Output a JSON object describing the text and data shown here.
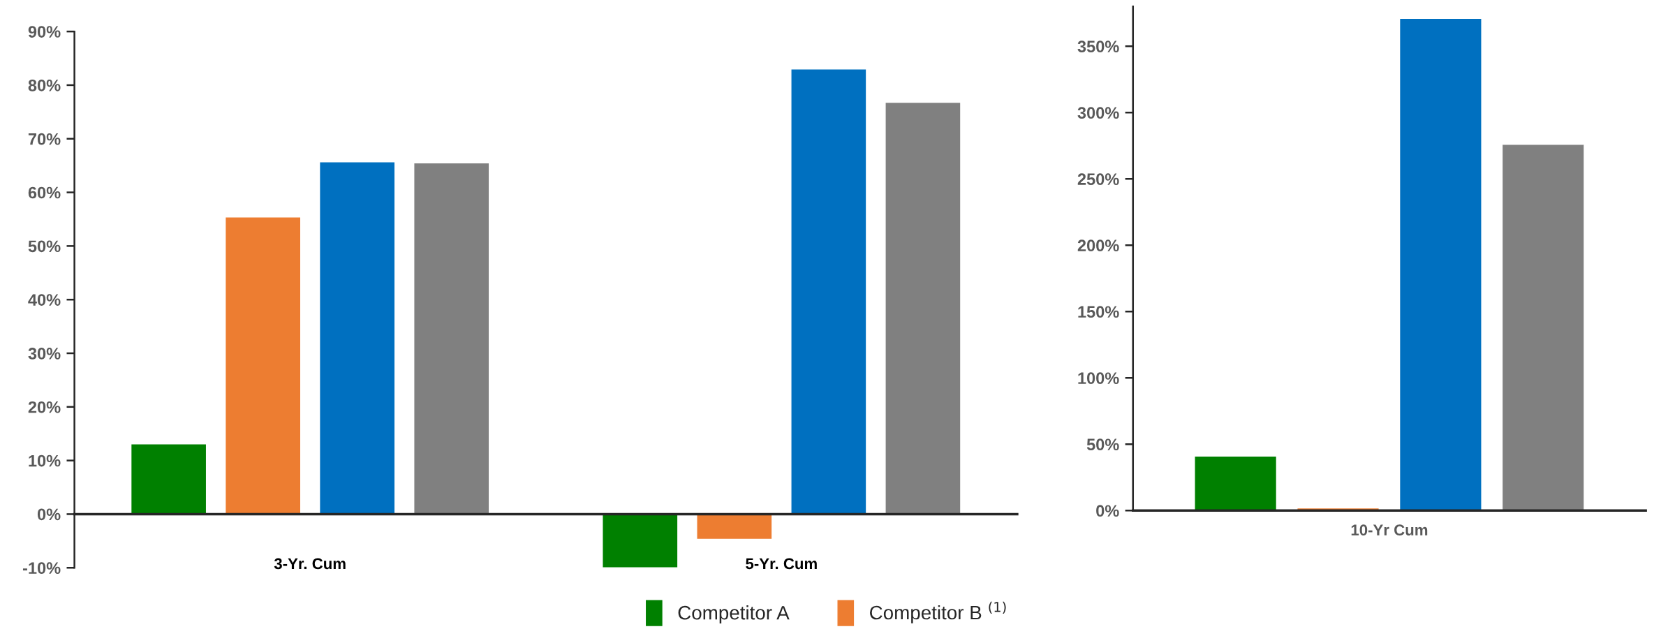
{
  "chart_data": [
    {
      "type": "bar",
      "categories": [
        "3-Yr. Cum",
        "5-Yr. Cum"
      ],
      "ylim": [
        -10,
        90
      ],
      "yticks": [
        {
          "value": -10,
          "label": "-10%"
        },
        {
          "value": 0,
          "label": "0%"
        },
        {
          "value": 10,
          "label": "10%"
        },
        {
          "value": 20,
          "label": "20%"
        },
        {
          "value": 30,
          "label": "30%"
        },
        {
          "value": 40,
          "label": "40%"
        },
        {
          "value": 50,
          "label": "50%"
        },
        {
          "value": 60,
          "label": "60%"
        },
        {
          "value": 70,
          "label": "70%"
        },
        {
          "value": 80,
          "label": "80%"
        },
        {
          "value": 90,
          "label": "90%"
        }
      ],
      "legend": "bottom",
      "series": [
        {
          "name": "Competitor A",
          "color": "#008000",
          "values": [
            13.1,
            -10.0
          ]
        },
        {
          "name": "Competitor B $^{(1)}$",
          "color": "#ed7d31",
          "values": [
            55.4,
            -4.7
          ]
        },
        {
          "color": "#0070c0",
          "values": [
            65.7,
            83.0
          ]
        },
        {
          "color": "#808080",
          "values": [
            65.5,
            76.8
          ]
        }
      ]
    },
    {
      "type": "bar",
      "categories": [
        "10-Yr Cum"
      ],
      "ylim": [
        0,
        380
      ],
      "yticks": [
        {
          "value": 0,
          "label": "0%"
        },
        {
          "value": 50,
          "label": "50%"
        },
        {
          "value": 100,
          "label": "100%"
        },
        {
          "value": 150,
          "label": "150%"
        },
        {
          "value": 200,
          "label": "200%"
        },
        {
          "value": 250,
          "label": "250%"
        },
        {
          "value": 300,
          "label": "300%"
        },
        {
          "value": 350,
          "label": "350%"
        }
      ],
      "series": [
        {
          "color": "#008000",
          "values": [
            41
          ]
        },
        {
          "color": "#ed7d31",
          "values": [
            2
          ]
        },
        {
          "color": "#0070c0",
          "values": [
            371
          ]
        },
        {
          "color": "#808080",
          "values": [
            276
          ]
        }
      ]
    }
  ]
}
